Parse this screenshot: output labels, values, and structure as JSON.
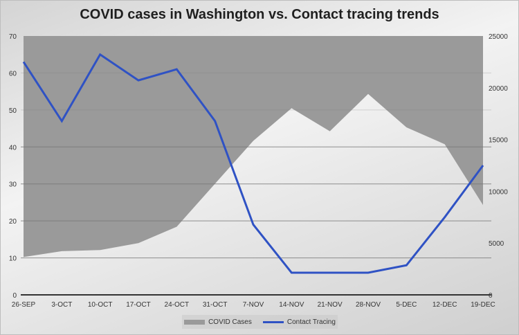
{
  "chart_data": {
    "type": "area+line",
    "title": "COVID cases in Washington vs. Contact tracing trends",
    "categories": [
      "26-SEP",
      "3-OCT",
      "10-OCT",
      "17-OCT",
      "24-OCT",
      "31-OCT",
      "7-NOV",
      "14-NOV",
      "21-NOV",
      "28-NOV",
      "5-DEC",
      "12-DEC",
      "19-DEC"
    ],
    "series": [
      {
        "name": "COVID Cases",
        "type": "area",
        "axis": "right",
        "color": "#9a9a9a",
        "values": [
          3650,
          4220,
          4330,
          5000,
          6580,
          10730,
          14870,
          18020,
          15800,
          19400,
          16180,
          14550,
          8670
        ]
      },
      {
        "name": "Contact Tracing",
        "type": "line",
        "axis": "left",
        "color": "#2f52c4",
        "values": [
          63,
          47,
          65,
          58,
          61,
          47,
          19,
          6,
          6,
          6,
          8,
          21,
          35
        ]
      }
    ],
    "left_axis": {
      "ylim": [
        0,
        70
      ],
      "ticks": [
        "0",
        "10",
        "20",
        "30",
        "40",
        "50",
        "60",
        "70"
      ]
    },
    "right_axis": {
      "ylim": [
        0,
        25000
      ],
      "ticks": [
        "0",
        "5000",
        "10000",
        "15000",
        "20000",
        "25000"
      ]
    },
    "legend": {
      "placement": "bottom",
      "entries": [
        "COVID Cases",
        "Contact Tracing"
      ]
    },
    "grid": true
  }
}
